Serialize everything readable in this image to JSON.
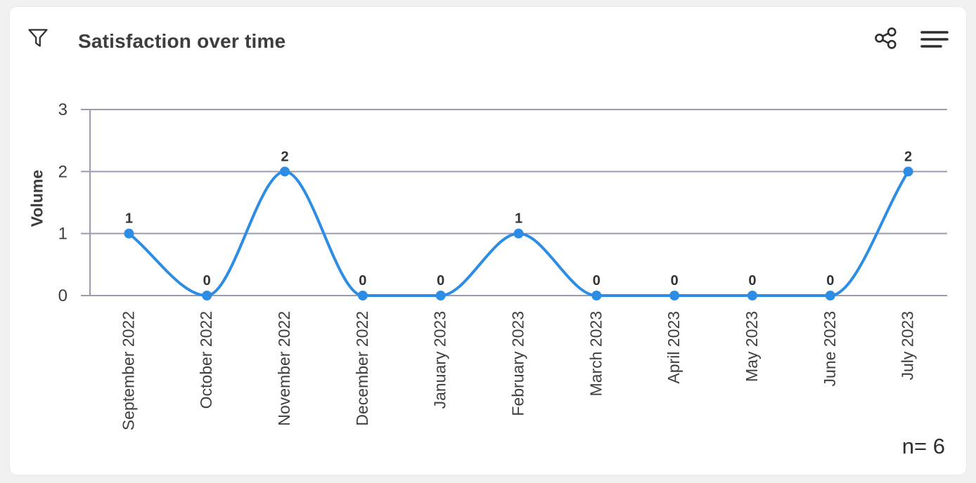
{
  "header": {
    "title": "Satisfaction over time",
    "icons": {
      "filter": "funnel-outline",
      "share": "share-nodes",
      "menu": "hamburger-3-lines"
    }
  },
  "colors": {
    "line": "#2d8ce4",
    "grid": "#9a9ab2",
    "axis_text": "#3f3f3f",
    "data_label": "#333333",
    "icon": "#2e2e2e",
    "card_bg": "#ffffff",
    "page_bg": "#f0f0f1"
  },
  "chart_data": {
    "type": "line",
    "line_shape": "monotone-spline",
    "title": "Satisfaction over time",
    "categories": [
      "September 2022",
      "October 2022",
      "November 2022",
      "December 2022",
      "January 2023",
      "February 2023",
      "March 2023",
      "April 2023",
      "May 2023",
      "June 2023",
      "July 2023"
    ],
    "series": [
      {
        "name": "Volume",
        "values": [
          1,
          0,
          2,
          0,
          0,
          1,
          0,
          0,
          0,
          0,
          2
        ]
      }
    ],
    "xlabel": "",
    "ylabel": "Volume",
    "ylim": [
      0,
      3
    ],
    "yticks": [
      0,
      1,
      2,
      3
    ],
    "grid": true,
    "legend_position": "none",
    "data_labels": true,
    "x_label_rotation": -90,
    "n_label": "n= 6"
  }
}
